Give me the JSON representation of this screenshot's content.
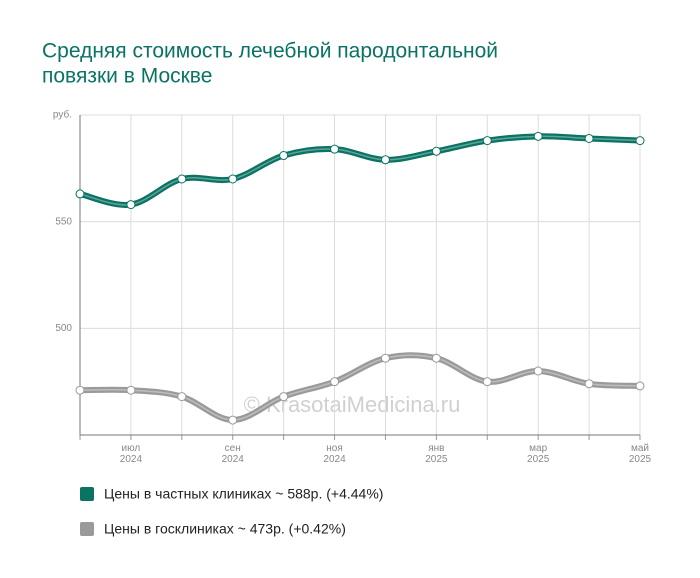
{
  "chart_data": {
    "type": "line",
    "title": [
      "Средняя стоимость лечебной пародонтальной",
      "повязки в Москве"
    ],
    "watermark": "© KrasotaiMedicina.ru",
    "categories": [
      null,
      "июл 2024",
      null,
      "сен 2024",
      null,
      "ноя 2024",
      null,
      "янв 2025",
      null,
      "мар 2025",
      null,
      "май 2025"
    ],
    "series": [
      {
        "name": "Цены в частных клиниках ~ 588р. (+4.44%)",
        "color": "#0a7363",
        "values": [
          563,
          558,
          570,
          570,
          581,
          584,
          579,
          583,
          588,
          590,
          589,
          588
        ]
      },
      {
        "name": "Цены в госклиниках ~ 473р. (+0.42%)",
        "color": "#9a9a9a",
        "values": [
          471,
          471,
          468,
          457,
          468,
          475,
          486,
          486,
          475,
          480,
          474,
          473
        ]
      }
    ],
    "ylim": [
      450,
      600
    ],
    "yticks": [
      500,
      550,
      {
        "value": 600,
        "label": "руб."
      }
    ],
    "grid": true
  }
}
